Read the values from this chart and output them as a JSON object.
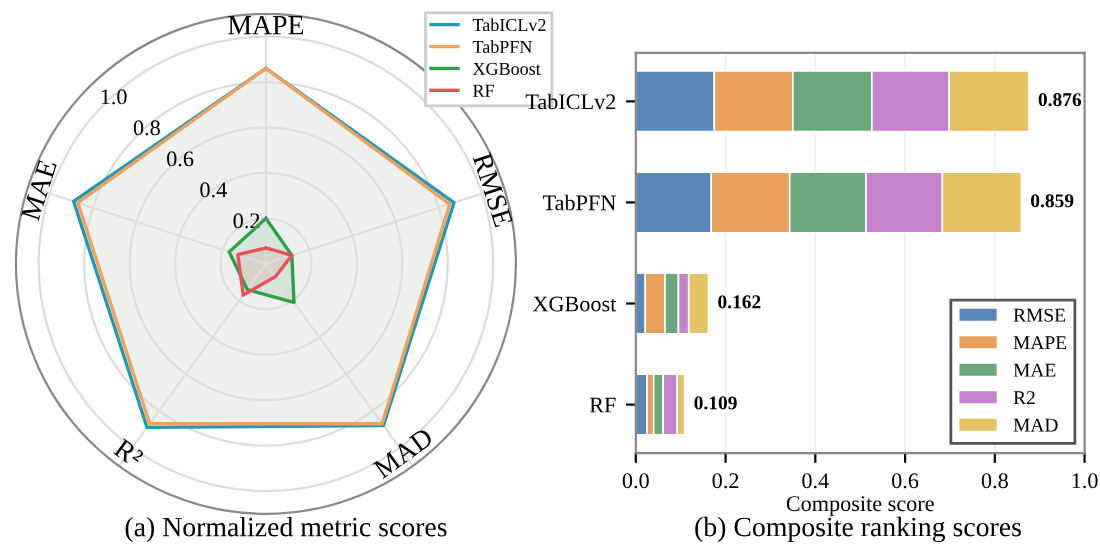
{
  "chart_data": [
    {
      "type": "radar",
      "title": "(a) Normalized metric scores",
      "categories": [
        "MAPE",
        "RMSE",
        "MAD",
        "R²",
        "MAE"
      ],
      "ylim": [
        0,
        1.1
      ],
      "yticks": [
        0.2,
        0.4,
        0.6,
        0.8,
        {
          "value": 1,
          "label": "1.0"
        }
      ],
      "grid": true,
      "legend": "top right",
      "series": [
        {
          "name": "TabICLv2",
          "color": "#1f9ab4",
          "values": [
            0.86,
            0.87,
            0.88,
            0.89,
            0.89
          ]
        },
        {
          "name": "TabPFN",
          "color": "#f4a05a",
          "values": [
            0.86,
            0.85,
            0.87,
            0.87,
            0.87
          ]
        },
        {
          "name": "XGBoost",
          "color": "#2ca048",
          "values": [
            0.2,
            0.12,
            0.21,
            0.14,
            0.17
          ]
        },
        {
          "name": "RF",
          "color": "#e8505b",
          "values": [
            0.07,
            0.12,
            0.07,
            0.17,
            0.13
          ]
        }
      ]
    },
    {
      "type": "bar",
      "orientation": "horizontal",
      "stacked": true,
      "title": "(b) Composite ranking scores",
      "xlabel": "Composite score",
      "categories": [
        "TabICLv2",
        "TabPFN",
        "XGBoost",
        "RF"
      ],
      "xlim": [
        0,
        1.0
      ],
      "xticks": [
        {
          "value": 0,
          "label": "0.0"
        },
        0.2,
        0.4,
        0.6,
        0.8,
        {
          "value": 1.0,
          "label": "1.0"
        }
      ],
      "grid": "x",
      "legend": "bottom right",
      "totals": [
        "0.876",
        "0.859",
        "0.162",
        "0.109"
      ],
      "series": [
        {
          "name": "RMSE",
          "color": "#5a87b9",
          "values": [
            0.175,
            0.168,
            0.021,
            0.025
          ]
        },
        {
          "name": "MAPE",
          "color": "#e8a05a",
          "values": [
            0.175,
            0.175,
            0.044,
            0.015
          ]
        },
        {
          "name": "MAE",
          "color": "#6aa77c",
          "values": [
            0.176,
            0.17,
            0.03,
            0.021
          ]
        },
        {
          "name": "R2",
          "color": "#c583cc",
          "values": [
            0.172,
            0.17,
            0.023,
            0.031
          ]
        },
        {
          "name": "MAD",
          "color": "#e5c365",
          "values": [
            0.178,
            0.176,
            0.044,
            0.017
          ]
        }
      ]
    }
  ]
}
